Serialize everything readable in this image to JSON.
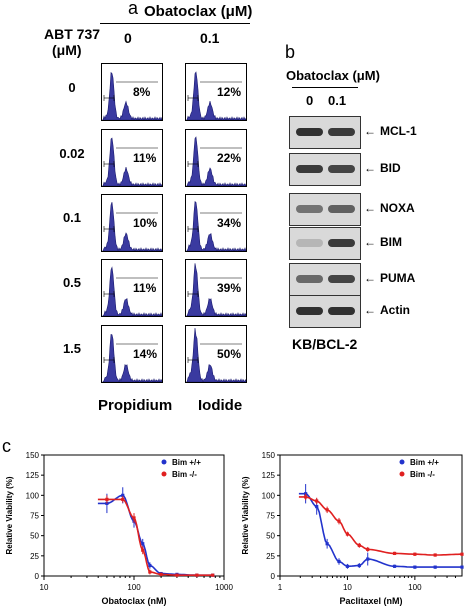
{
  "panel_a": {
    "letter": "a",
    "header": "Obatoclax (μM)",
    "col_values": [
      "0",
      "0.1"
    ],
    "row_header_line1": "ABT 737",
    "row_header_line2": "(μM)",
    "rows": [
      {
        "label": "0",
        "pct": [
          "8%",
          "12%"
        ]
      },
      {
        "label": "0.02",
        "pct": [
          "11%",
          "22%"
        ]
      },
      {
        "label": "0.1",
        "pct": [
          "10%",
          "34%"
        ]
      },
      {
        "label": "0.5",
        "pct": [
          "11%",
          "39%"
        ]
      },
      {
        "label": "1.5",
        "pct": [
          "14%",
          "50%"
        ]
      }
    ],
    "xlabel_1": "Propidium",
    "xlabel_2": "Iodide",
    "histogram_color": "#3a3aa0"
  },
  "panel_b": {
    "letter": "b",
    "header": "Obatoclax (μM)",
    "col_values": [
      "0",
      "0.1"
    ],
    "blots": [
      {
        "label": "MCL-1",
        "intensity": [
          0.85,
          0.8
        ]
      },
      {
        "label": "BID",
        "intensity": [
          0.8,
          0.75
        ]
      },
      {
        "label": "NOXA",
        "intensity": [
          0.5,
          0.6
        ]
      },
      {
        "label": "BIM",
        "intensity": [
          0.15,
          0.8
        ]
      },
      {
        "label": "PUMA",
        "intensity": [
          0.55,
          0.75
        ]
      },
      {
        "label": "Actin",
        "intensity": [
          0.85,
          0.85
        ]
      }
    ],
    "cell_line": "KB/BCL-2",
    "arrow": "←"
  },
  "panel_c": {
    "letter": "c"
  },
  "chart_data": [
    {
      "type": "scatter",
      "xscale": "log",
      "xlabel": "Obatoclax (nM)",
      "ylabel": "Relative Viability (%)",
      "xlim": [
        10,
        1000
      ],
      "ylim": [
        0,
        150
      ],
      "xticks": [
        "10",
        "100",
        "1000"
      ],
      "yticks": [
        "0",
        "25",
        "50",
        "75",
        "100",
        "125",
        "150"
      ],
      "legend_position": "top-right",
      "series": [
        {
          "name": "Bim +/+",
          "color": "#2233cc",
          "x": [
            50,
            75,
            100,
            125,
            150,
            200,
            300,
            500,
            750
          ],
          "y": [
            90,
            100,
            68,
            40,
            13,
            3,
            2,
            1,
            1
          ],
          "err": [
            12,
            10,
            8,
            6,
            4,
            2,
            1,
            1,
            1
          ]
        },
        {
          "name": "Bim -/-",
          "color": "#e02020",
          "x": [
            50,
            75,
            100,
            125,
            150,
            200,
            300,
            500,
            750
          ],
          "y": [
            95,
            95,
            72,
            32,
            5,
            2,
            1,
            1,
            1
          ],
          "err": [
            5,
            4,
            6,
            5,
            3,
            2,
            1,
            1,
            1
          ]
        }
      ]
    },
    {
      "type": "scatter",
      "xscale": "log",
      "xlabel": "Paclitaxel (nM)",
      "ylabel": "Relative Viability (%)",
      "xlim": [
        1,
        500
      ],
      "ylim": [
        0,
        150
      ],
      "xticks": [
        "1",
        "10",
        "100"
      ],
      "yticks": [
        "0",
        "25",
        "50",
        "75",
        "100",
        "125",
        "150"
      ],
      "legend_position": "top-right",
      "series": [
        {
          "name": "Bim +/+",
          "color": "#2233cc",
          "x": [
            2.4,
            3.5,
            5,
            7.5,
            10,
            15,
            20,
            50,
            100,
            200,
            500
          ],
          "y": [
            102,
            86,
            40,
            18,
            12,
            13,
            21,
            12,
            11,
            11,
            11
          ],
          "err": [
            12,
            10,
            6,
            4,
            3,
            3,
            8,
            2,
            2,
            2,
            2
          ]
        },
        {
          "name": "Bim -/-",
          "color": "#e02020",
          "x": [
            2.4,
            3.5,
            5,
            7.5,
            10,
            15,
            20,
            50,
            100,
            200,
            500
          ],
          "y": [
            98,
            93,
            82,
            68,
            52,
            38,
            33,
            28,
            27,
            26,
            27
          ],
          "err": [
            4,
            4,
            4,
            4,
            3,
            3,
            3,
            2,
            2,
            2,
            2
          ]
        }
      ]
    }
  ]
}
